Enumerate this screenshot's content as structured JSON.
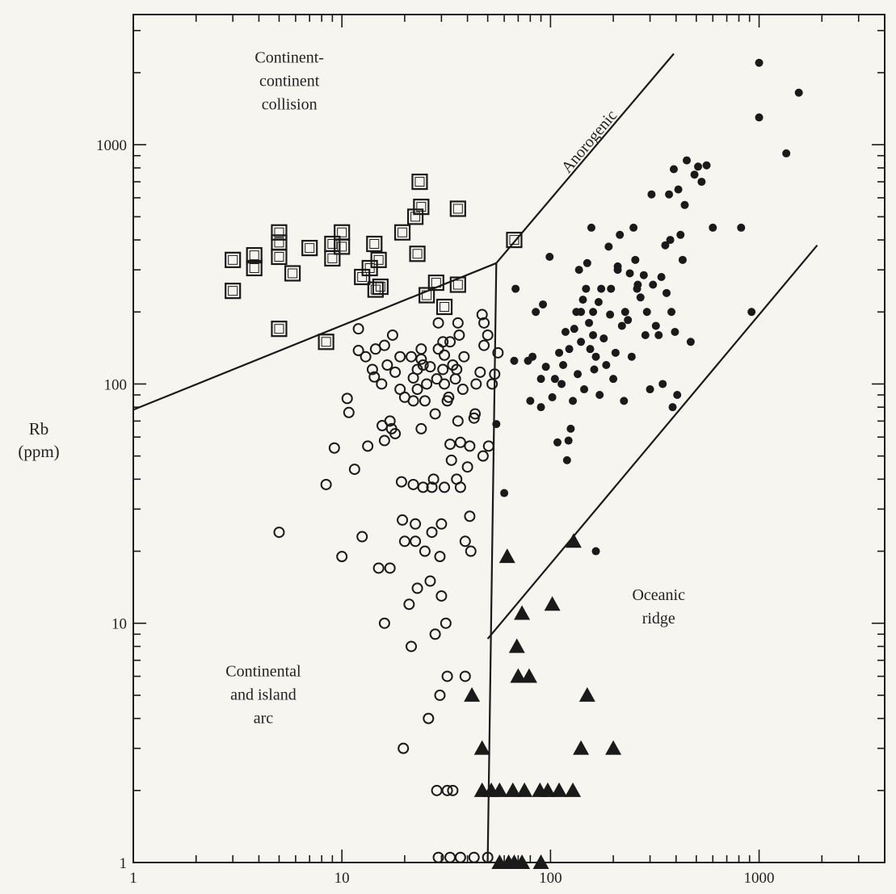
{
  "chart_data": {
    "type": "scatter",
    "x_scale": "log",
    "y_scale": "log",
    "xlim": [
      1,
      4000
    ],
    "ylim": [
      1,
      3500
    ],
    "ylabel": [
      "Rb",
      "(ppm)"
    ],
    "xlabel": "",
    "x_ticks": [
      {
        "value": 1,
        "label": "1"
      },
      {
        "value": 10,
        "label": "10"
      },
      {
        "value": 100,
        "label": "100"
      },
      {
        "value": 1000,
        "label": "1000"
      }
    ],
    "y_ticks": [
      {
        "value": 1,
        "label": "1"
      },
      {
        "value": 10,
        "label": "10"
      },
      {
        "value": 100,
        "label": "100"
      },
      {
        "value": 1000,
        "label": "1000"
      }
    ],
    "grid": false,
    "colors": {
      "ink": "#1a1a1a",
      "background": "#f7f5f0"
    },
    "field_labels": [
      {
        "lines": [
          "Continent-",
          "continent",
          "collision"
        ],
        "x": 5.6,
        "y": 2200
      },
      {
        "lines": [
          "Continental",
          "and island",
          "arc"
        ],
        "x": 4.2,
        "y": 6
      },
      {
        "lines": [
          "Oceanic",
          "ridge"
        ],
        "x": 330,
        "y": 12.5
      }
    ],
    "rotated_labels": [
      {
        "text": "Anorogenic",
        "x": 160,
        "y": 1000
      }
    ],
    "boundary_lines": [
      [
        [
          1,
          78
        ],
        [
          55,
          320
        ]
      ],
      [
        [
          55,
          320
        ],
        [
          390,
          2400
        ]
      ],
      [
        [
          55,
          320
        ],
        [
          50,
          1
        ]
      ],
      [
        [
          50,
          8.6
        ],
        [
          1900,
          380
        ]
      ]
    ],
    "series": [
      {
        "marker": "square",
        "points": [
          [
            3,
            330
          ],
          [
            3,
            245
          ],
          [
            3.8,
            305
          ],
          [
            3.8,
            345
          ],
          [
            5,
            430
          ],
          [
            5,
            390
          ],
          [
            5,
            340
          ],
          [
            5,
            170
          ],
          [
            5.8,
            290
          ],
          [
            7,
            370
          ],
          [
            8.4,
            150
          ],
          [
            9,
            385
          ],
          [
            9,
            335
          ],
          [
            10,
            430
          ],
          [
            10,
            375
          ],
          [
            12.5,
            280
          ],
          [
            13.6,
            305
          ],
          [
            14.3,
            385
          ],
          [
            14.5,
            248
          ],
          [
            15,
            330
          ],
          [
            15.3,
            255
          ],
          [
            19.5,
            430
          ],
          [
            22.5,
            500
          ],
          [
            23,
            350
          ],
          [
            23.6,
            700
          ],
          [
            24,
            550
          ],
          [
            25.5,
            235
          ],
          [
            28.3,
            265
          ],
          [
            31,
            210
          ],
          [
            36,
            260
          ],
          [
            36,
            540
          ],
          [
            67,
            400
          ]
        ]
      },
      {
        "marker": "open-circle",
        "points": [
          [
            5,
            24
          ],
          [
            8.4,
            38
          ],
          [
            9.2,
            54
          ],
          [
            10,
            19
          ],
          [
            10.6,
            87
          ],
          [
            10.8,
            76
          ],
          [
            11.5,
            44
          ],
          [
            12,
            170
          ],
          [
            12,
            138
          ],
          [
            12.5,
            23
          ],
          [
            13,
            130
          ],
          [
            13.3,
            55
          ],
          [
            14,
            115
          ],
          [
            14.3,
            107
          ],
          [
            14.5,
            140
          ],
          [
            15,
            17
          ],
          [
            15.5,
            100
          ],
          [
            15.6,
            67
          ],
          [
            16,
            58
          ],
          [
            16,
            145
          ],
          [
            16,
            10
          ],
          [
            16.5,
            120
          ],
          [
            17,
            17
          ],
          [
            17,
            70
          ],
          [
            17.3,
            65
          ],
          [
            17.5,
            160
          ],
          [
            18,
            112
          ],
          [
            18,
            62
          ],
          [
            19,
            130
          ],
          [
            19,
            95
          ],
          [
            19.3,
            39
          ],
          [
            19.5,
            27
          ],
          [
            19.7,
            3
          ],
          [
            20,
            22
          ],
          [
            20,
            88
          ],
          [
            21,
            12
          ],
          [
            21.5,
            8
          ],
          [
            21.5,
            130
          ],
          [
            22,
            85
          ],
          [
            22,
            106
          ],
          [
            22,
            38
          ],
          [
            22.5,
            22
          ],
          [
            22.5,
            26
          ],
          [
            23,
            14
          ],
          [
            23,
            95
          ],
          [
            23,
            115
          ],
          [
            24,
            127
          ],
          [
            24,
            140
          ],
          [
            24,
            65
          ],
          [
            24.5,
            120
          ],
          [
            24.5,
            37
          ],
          [
            25,
            85
          ],
          [
            25,
            20
          ],
          [
            25.5,
            100
          ],
          [
            26,
            4
          ],
          [
            26.5,
            15
          ],
          [
            26.5,
            118
          ],
          [
            27,
            37
          ],
          [
            27,
            24
          ],
          [
            27.5,
            40
          ],
          [
            28,
            75
          ],
          [
            28,
            9
          ],
          [
            28.5,
            105
          ],
          [
            29,
            140
          ],
          [
            29,
            180
          ],
          [
            29.5,
            5
          ],
          [
            29.5,
            19
          ],
          [
            30,
            26
          ],
          [
            30,
            13
          ],
          [
            30.5,
            150
          ],
          [
            30.5,
            115
          ],
          [
            31,
            100
          ],
          [
            31,
            132
          ],
          [
            31,
            37
          ],
          [
            31.5,
            10
          ],
          [
            32,
            85
          ],
          [
            32,
            6
          ],
          [
            32.5,
            88
          ],
          [
            33,
            56
          ],
          [
            33,
            150
          ],
          [
            33.5,
            48
          ],
          [
            34,
            2
          ],
          [
            34,
            120
          ],
          [
            35,
            105
          ],
          [
            35.5,
            40
          ],
          [
            35.5,
            115
          ],
          [
            36,
            180
          ],
          [
            36,
            70
          ],
          [
            36.5,
            160
          ],
          [
            37,
            37
          ],
          [
            37,
            57
          ],
          [
            38,
            95
          ],
          [
            38.5,
            130
          ],
          [
            39,
            22
          ],
          [
            39,
            6
          ],
          [
            40,
            45
          ],
          [
            41,
            28
          ],
          [
            41,
            55
          ],
          [
            41.5,
            20
          ],
          [
            43,
            72
          ],
          [
            43.5,
            75
          ],
          [
            44,
            100
          ],
          [
            46,
            112
          ],
          [
            47,
            195
          ],
          [
            47.5,
            50
          ],
          [
            48,
            145
          ],
          [
            48,
            180
          ],
          [
            50,
            160
          ],
          [
            50.5,
            55
          ],
          [
            52.5,
            100
          ],
          [
            54,
            110
          ],
          [
            56,
            135
          ],
          [
            28.5,
            2
          ],
          [
            32,
            2
          ],
          [
            29,
            1.05
          ],
          [
            33,
            1.05
          ],
          [
            37,
            1.05
          ],
          [
            43,
            1.05
          ],
          [
            50,
            1.05
          ]
        ]
      },
      {
        "marker": "filled-circle",
        "points": [
          [
            55,
            68
          ],
          [
            60,
            35
          ],
          [
            67,
            125
          ],
          [
            68,
            250
          ],
          [
            78,
            125
          ],
          [
            80,
            85
          ],
          [
            82,
            130
          ],
          [
            85,
            200
          ],
          [
            90,
            105
          ],
          [
            90,
            80
          ],
          [
            92,
            215
          ],
          [
            95,
            118
          ],
          [
            99,
            340
          ],
          [
            102,
            88
          ],
          [
            105,
            105
          ],
          [
            108,
            57
          ],
          [
            110,
            135
          ],
          [
            113,
            100
          ],
          [
            115,
            120
          ],
          [
            118,
            165
          ],
          [
            120,
            48
          ],
          [
            122,
            58
          ],
          [
            123,
            140
          ],
          [
            125,
            65
          ],
          [
            128,
            85
          ],
          [
            130,
            170
          ],
          [
            133,
            200
          ],
          [
            135,
            110
          ],
          [
            137,
            300
          ],
          [
            140,
            150
          ],
          [
            140,
            200
          ],
          [
            143,
            225
          ],
          [
            145,
            95
          ],
          [
            148,
            250
          ],
          [
            150,
            320
          ],
          [
            153,
            180
          ],
          [
            155,
            140
          ],
          [
            157,
            450
          ],
          [
            160,
            160
          ],
          [
            160,
            200
          ],
          [
            162,
            115
          ],
          [
            165,
            130
          ],
          [
            170,
            220
          ],
          [
            172,
            90
          ],
          [
            175,
            250
          ],
          [
            180,
            155
          ],
          [
            185,
            120
          ],
          [
            190,
            375
          ],
          [
            193,
            195
          ],
          [
            195,
            250
          ],
          [
            200,
            105
          ],
          [
            205,
            135
          ],
          [
            210,
            300
          ],
          [
            210,
            310
          ],
          [
            215,
            420
          ],
          [
            220,
            175
          ],
          [
            225,
            85
          ],
          [
            228,
            200
          ],
          [
            235,
            185
          ],
          [
            240,
            290
          ],
          [
            245,
            130
          ],
          [
            250,
            450
          ],
          [
            255,
            330
          ],
          [
            260,
            250
          ],
          [
            262,
            260
          ],
          [
            270,
            230
          ],
          [
            280,
            285
          ],
          [
            285,
            160
          ],
          [
            290,
            200
          ],
          [
            300,
            95
          ],
          [
            305,
            620
          ],
          [
            310,
            260
          ],
          [
            320,
            175
          ],
          [
            330,
            160
          ],
          [
            340,
            280
          ],
          [
            345,
            100
          ],
          [
            355,
            380
          ],
          [
            360,
            240
          ],
          [
            370,
            620
          ],
          [
            375,
            400
          ],
          [
            380,
            200
          ],
          [
            390,
            790
          ],
          [
            395,
            165
          ],
          [
            405,
            90
          ],
          [
            410,
            650
          ],
          [
            420,
            420
          ],
          [
            430,
            330
          ],
          [
            440,
            560
          ],
          [
            450,
            860
          ],
          [
            470,
            150
          ],
          [
            490,
            750
          ],
          [
            510,
            810
          ],
          [
            530,
            700
          ],
          [
            560,
            820
          ],
          [
            600,
            450
          ],
          [
            820,
            450
          ],
          [
            1000,
            1300
          ],
          [
            1000,
            2200
          ],
          [
            1350,
            920
          ],
          [
            1550,
            1650
          ],
          [
            920,
            200
          ],
          [
            385,
            80
          ],
          [
            165,
            20
          ]
        ]
      },
      {
        "marker": "triangle",
        "points": [
          [
            42,
            5
          ],
          [
            47,
            3
          ],
          [
            47,
            2
          ],
          [
            52,
            2
          ],
          [
            57,
            2
          ],
          [
            62,
            19
          ],
          [
            66,
            2
          ],
          [
            69,
            8
          ],
          [
            70,
            6
          ],
          [
            73,
            11
          ],
          [
            75,
            2
          ],
          [
            79,
            6
          ],
          [
            89,
            2
          ],
          [
            97,
            2
          ],
          [
            102,
            12
          ],
          [
            110,
            2
          ],
          [
            128,
            2
          ],
          [
            129,
            22
          ],
          [
            140,
            3
          ],
          [
            150,
            5
          ],
          [
            200,
            3
          ],
          [
            57,
            1
          ],
          [
            63,
            1
          ],
          [
            67,
            1
          ],
          [
            73,
            1
          ],
          [
            90,
            1
          ]
        ]
      }
    ]
  }
}
